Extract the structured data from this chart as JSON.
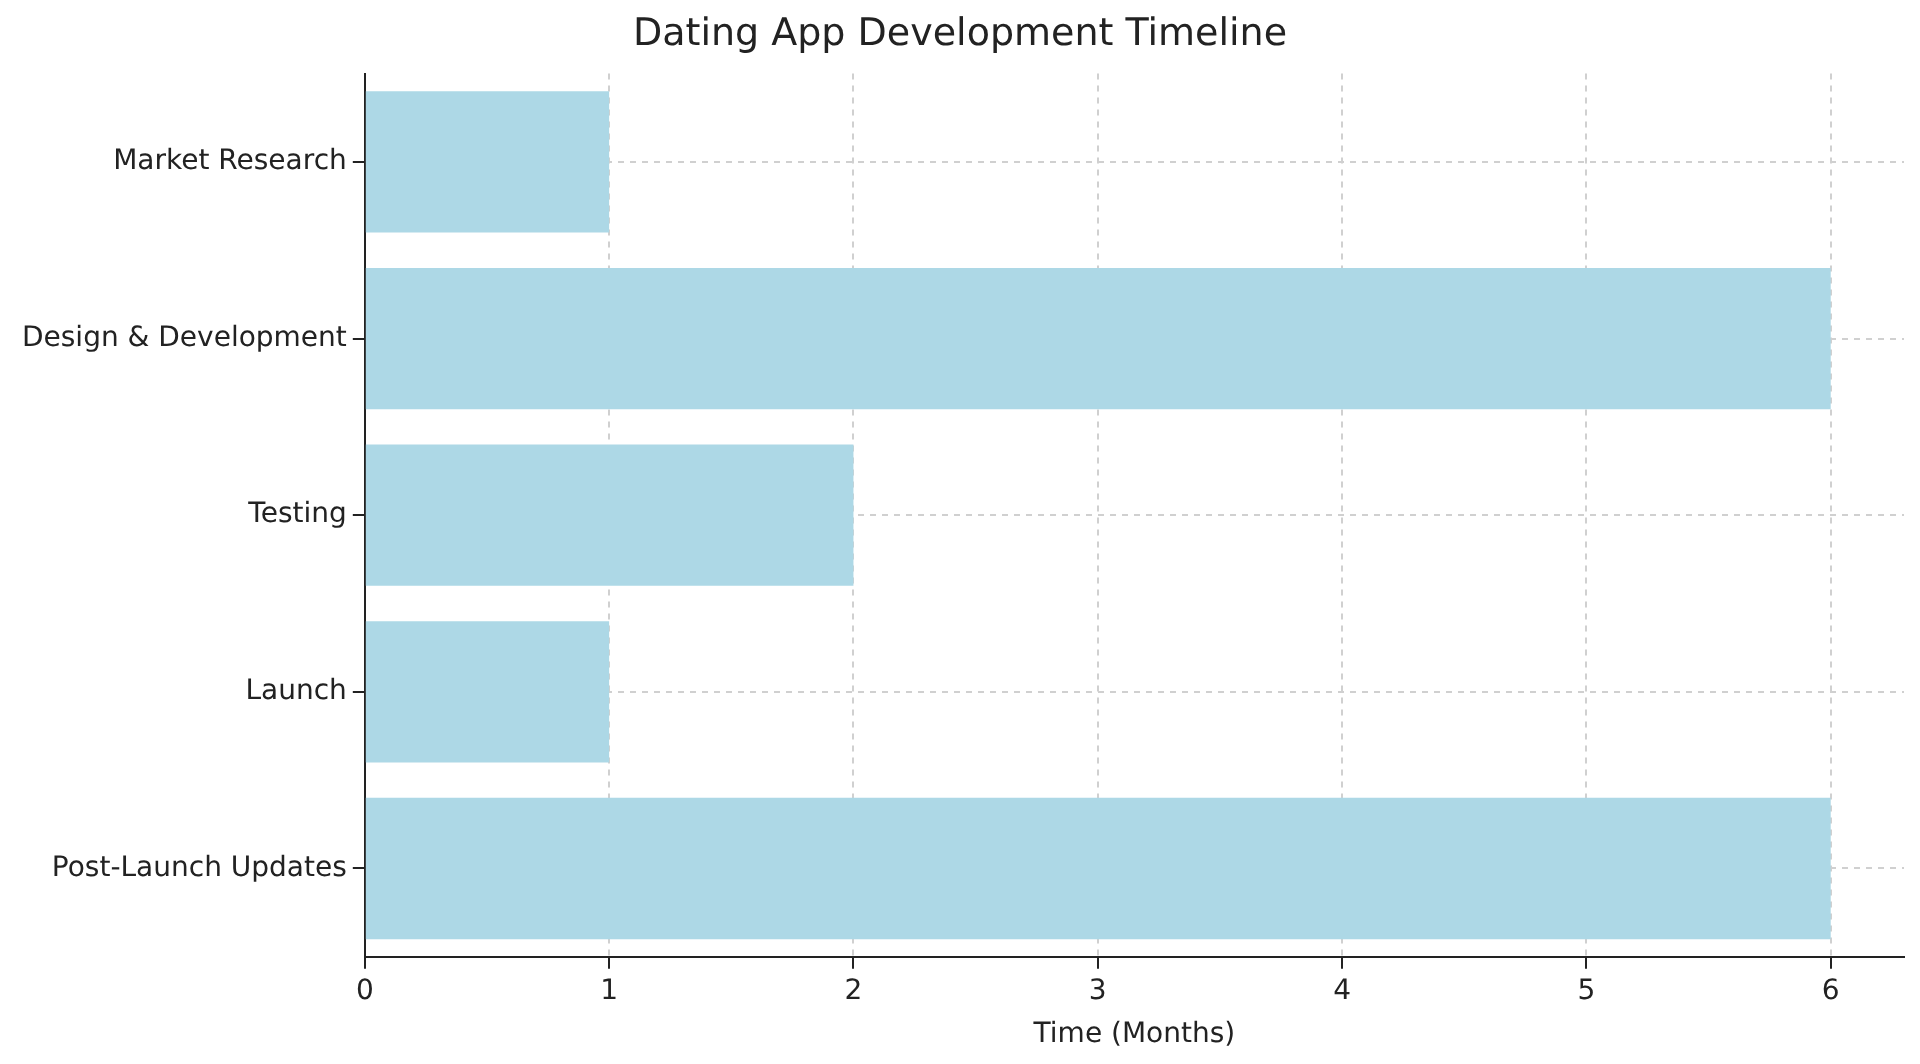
{
  "chart_data": {
    "type": "bar",
    "orientation": "horizontal",
    "title": "Dating App Development Timeline",
    "xlabel": "Time (Months)",
    "categories": [
      "Market Research",
      "Design & Development",
      "Testing",
      "Launch",
      "Post-Launch Updates"
    ],
    "values": [
      1,
      6,
      2,
      1,
      6
    ],
    "color": "#add8e6",
    "xlim": [
      0,
      6.3
    ],
    "xticks": [
      0,
      1,
      2,
      3,
      4,
      5,
      6
    ],
    "grid": true
  }
}
